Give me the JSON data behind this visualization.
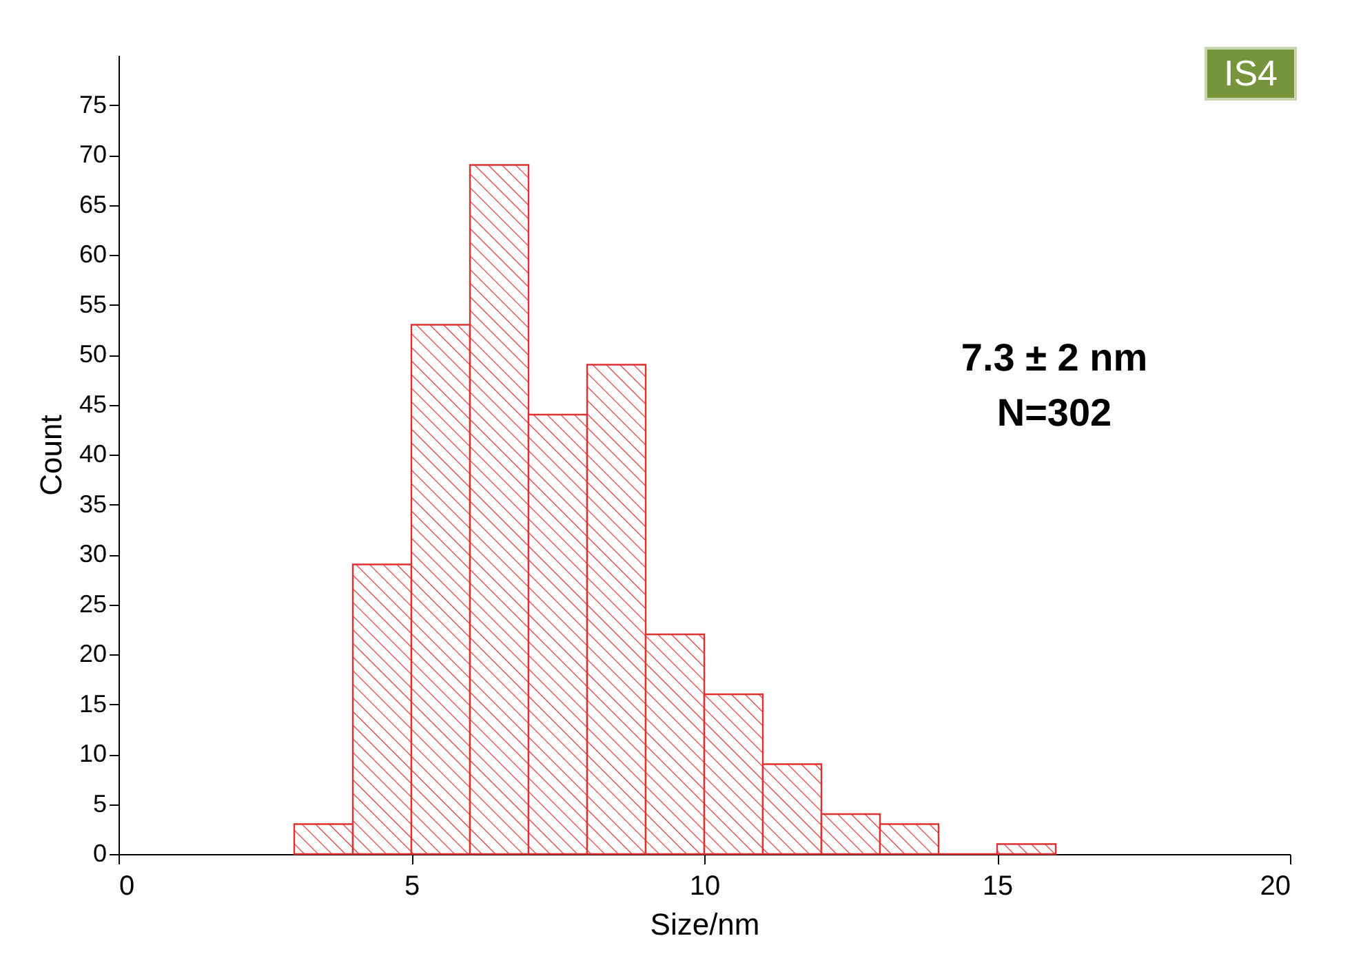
{
  "chart_data": {
    "type": "histogram",
    "xlabel": "Size/nm",
    "ylabel": "Count",
    "bins": [
      3,
      4,
      5,
      6,
      7,
      8,
      9,
      10,
      11,
      12,
      13,
      14,
      15,
      16
    ],
    "values": [
      3,
      29,
      53,
      69,
      44,
      49,
      22,
      16,
      9,
      4,
      3,
      0,
      1
    ],
    "color": "#e03030",
    "xlim": [
      0,
      20
    ],
    "xticks": [
      0,
      5,
      10,
      15,
      20
    ],
    "ylim": [
      0,
      80
    ],
    "yticks": [
      0,
      5,
      10,
      15,
      20,
      25,
      30,
      35,
      40,
      45,
      50,
      55,
      60,
      65,
      70,
      75
    ],
    "annotations": [
      "IS4",
      "7.3 ± 2 nm",
      "N=302"
    ],
    "grid": false
  }
}
